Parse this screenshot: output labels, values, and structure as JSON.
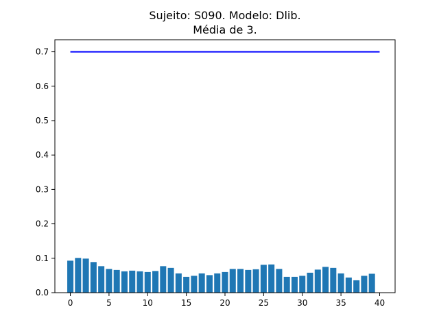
{
  "chart_data": {
    "type": "bar",
    "title_line1": "Sujeito: S090. Modelo: Dlib.",
    "title_line2": "Média de 3.",
    "xlabel": "",
    "ylabel": "",
    "xlim": [
      -2,
      42
    ],
    "ylim": [
      0,
      0.735
    ],
    "xticks": [
      0,
      5,
      10,
      15,
      20,
      25,
      30,
      35,
      40
    ],
    "xtick_labels": [
      "0",
      "5",
      "10",
      "15",
      "20",
      "25",
      "30",
      "35",
      "40"
    ],
    "yticks": [
      0.0,
      0.1,
      0.2,
      0.3,
      0.4,
      0.5,
      0.6,
      0.7
    ],
    "ytick_labels": [
      "0.0",
      "0.1",
      "0.2",
      "0.3",
      "0.4",
      "0.5",
      "0.6",
      "0.7"
    ],
    "grid": false,
    "x": [
      0,
      1,
      2,
      3,
      4,
      5,
      6,
      7,
      8,
      9,
      10,
      11,
      12,
      13,
      14,
      15,
      16,
      17,
      18,
      19,
      20,
      21,
      22,
      23,
      24,
      25,
      26,
      27,
      28,
      29,
      30,
      31,
      32,
      33,
      34,
      35,
      36,
      37,
      38,
      39
    ],
    "values": [
      0.093,
      0.101,
      0.099,
      0.089,
      0.077,
      0.069,
      0.066,
      0.062,
      0.064,
      0.062,
      0.06,
      0.063,
      0.077,
      0.072,
      0.056,
      0.046,
      0.049,
      0.056,
      0.051,
      0.056,
      0.06,
      0.069,
      0.069,
      0.066,
      0.068,
      0.081,
      0.082,
      0.069,
      0.046,
      0.046,
      0.049,
      0.058,
      0.067,
      0.075,
      0.072,
      0.056,
      0.044,
      0.036,
      0.049,
      0.055
    ],
    "bar_color": "#1f77b4",
    "threshold_line": {
      "y": 0.7,
      "x_start": 0,
      "x_end": 40,
      "color": "#0000ff"
    }
  }
}
